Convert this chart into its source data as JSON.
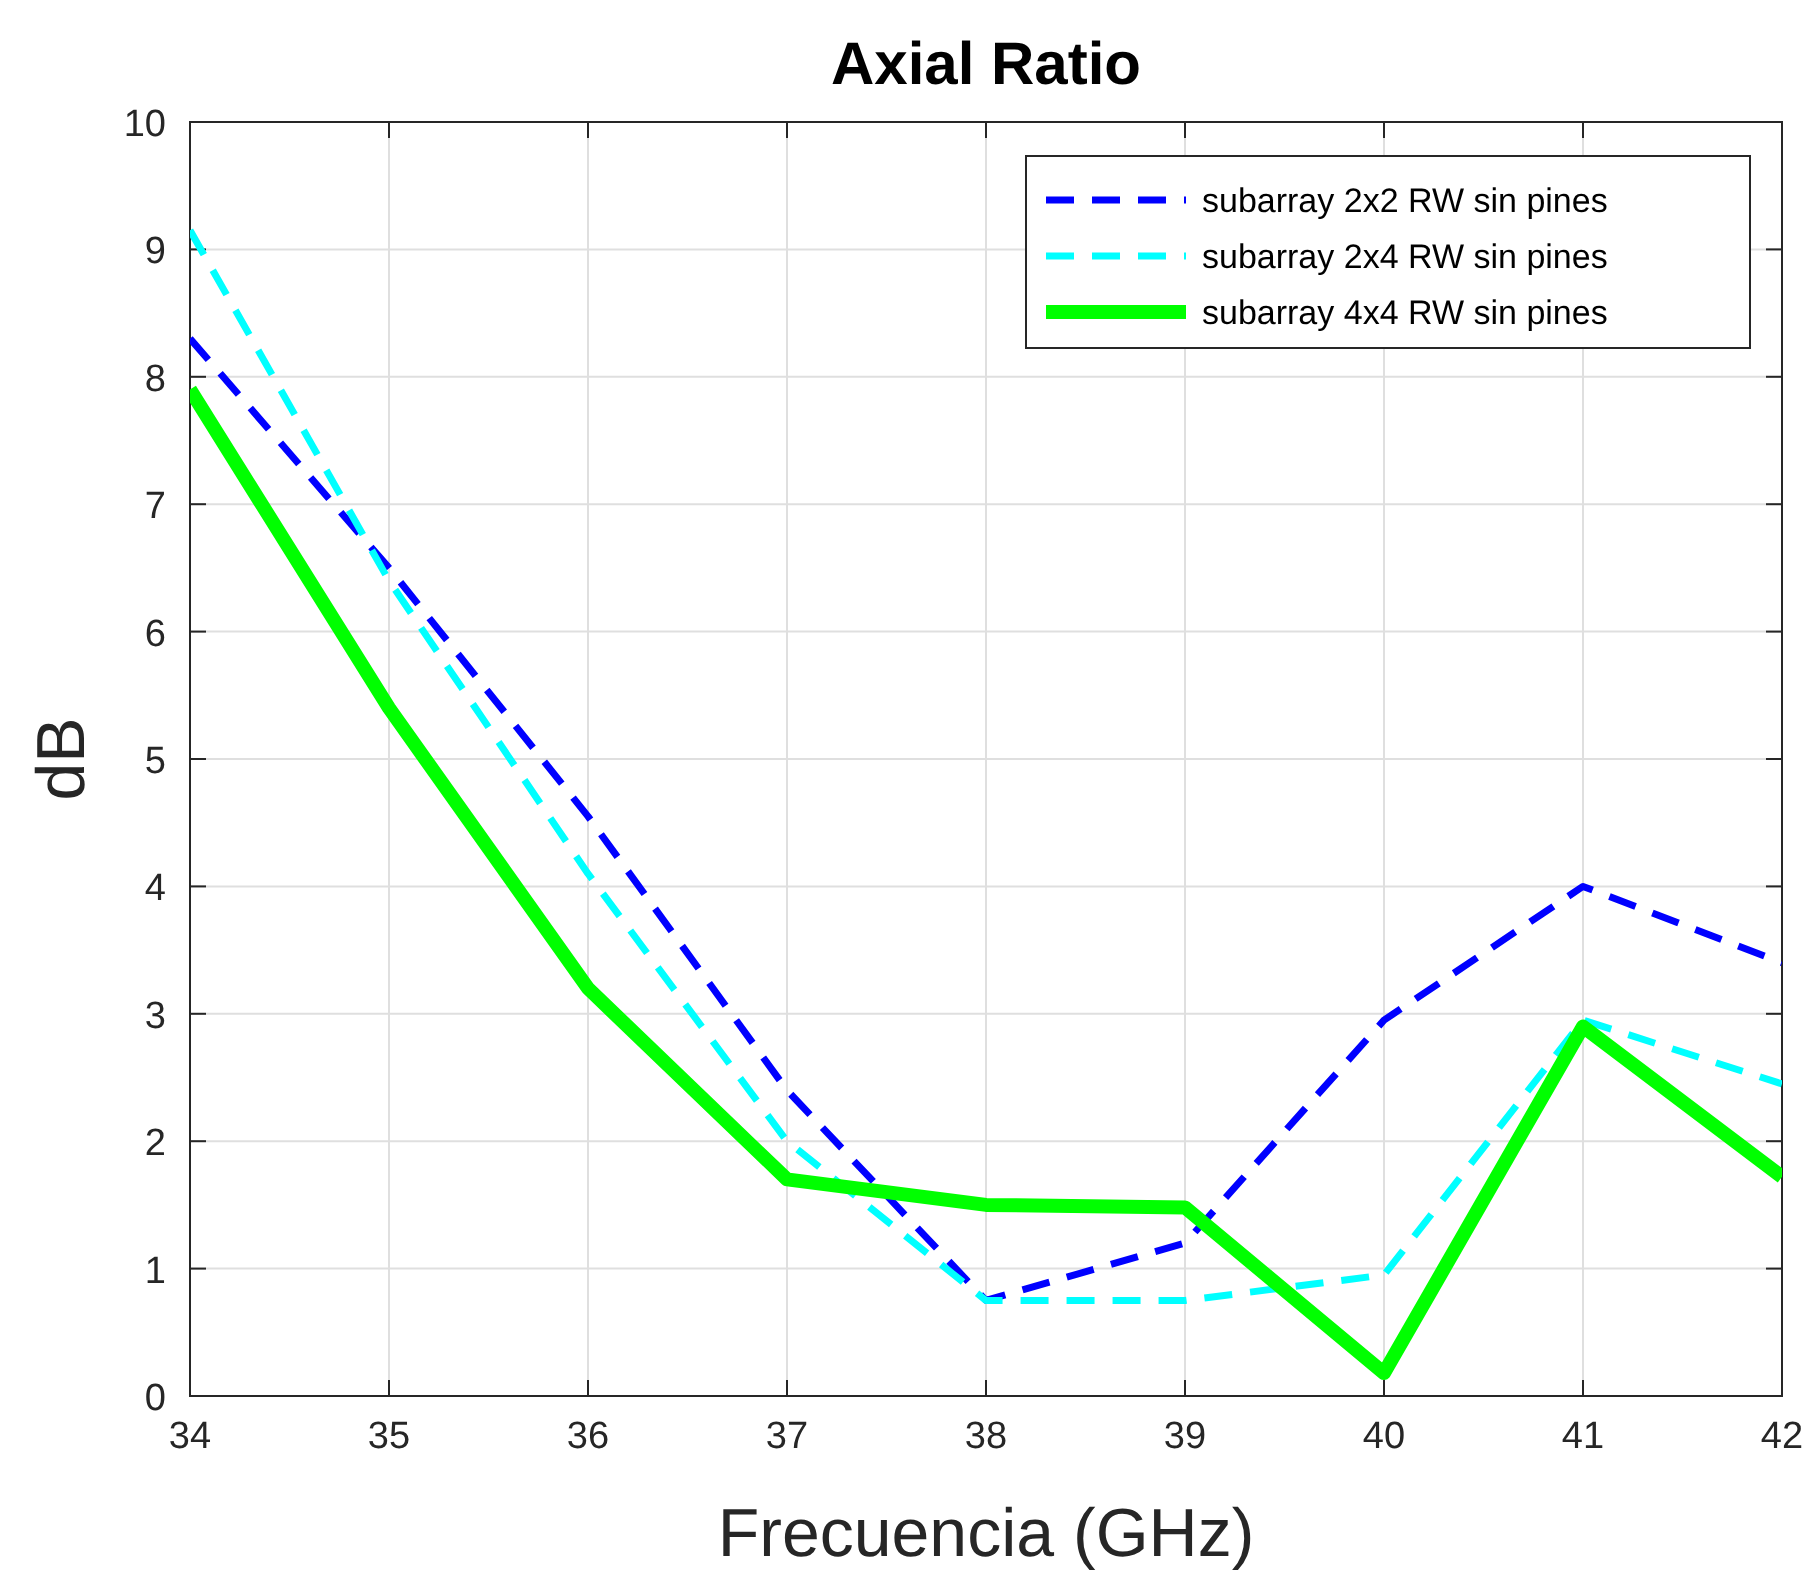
{
  "chart_data": {
    "type": "line",
    "title": "Axial Ratio",
    "xlabel": "Frecuencia (GHz)",
    "ylabel": "dB",
    "x": [
      34,
      35,
      36,
      37,
      38,
      39,
      40,
      41,
      42
    ],
    "series": [
      {
        "name": "subarray 2x2 RW sin pines",
        "color": "#0000ff",
        "line_style": "dashed",
        "values": [
          8.3,
          6.5,
          4.55,
          2.4,
          0.75,
          1.2,
          2.95,
          4.0,
          3.4
        ]
      },
      {
        "name": "subarray 2x4 RW sin pines",
        "color": "#00ffff",
        "line_style": "dashed",
        "values": [
          9.15,
          6.4,
          4.1,
          2.0,
          0.75,
          0.75,
          0.95,
          2.95,
          2.45
        ]
      },
      {
        "name": "subarray 4x4 RW sin pines",
        "color": "#00ff00",
        "line_style": "solid",
        "values": [
          7.9,
          5.4,
          3.2,
          1.7,
          1.5,
          1.48,
          0.18,
          2.9,
          1.72
        ]
      }
    ],
    "xlim": [
      34,
      42
    ],
    "xticks": [
      34,
      35,
      36,
      37,
      38,
      39,
      40,
      41,
      42
    ],
    "ylim": [
      0,
      10
    ],
    "yticks": [
      0,
      1,
      2,
      3,
      4,
      5,
      6,
      7,
      8,
      9,
      10
    ],
    "grid": true,
    "legend": "top right",
    "marker": "none"
  }
}
